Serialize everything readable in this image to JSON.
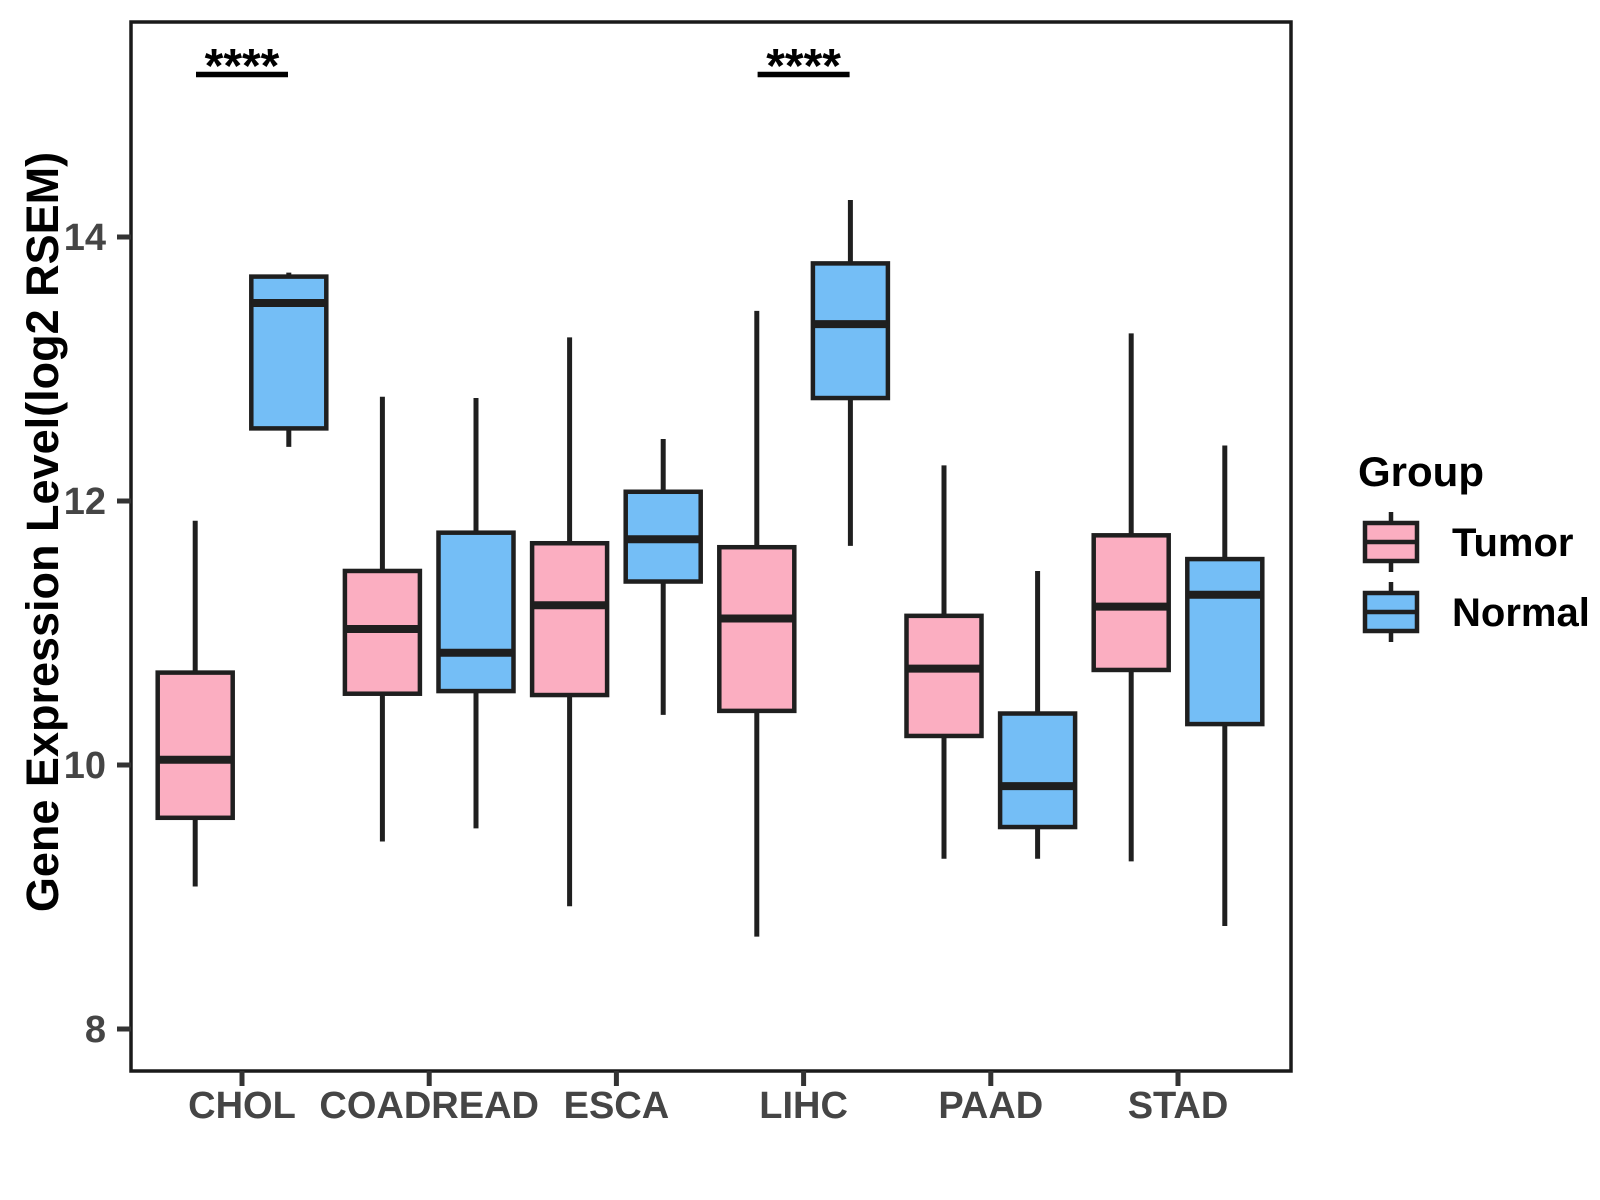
{
  "chart_data": {
    "type": "boxplot",
    "title": "",
    "xlabel": "",
    "ylabel": "Gene Expression Level(log2 RSEM)",
    "categories": [
      "CHOL",
      "COADREAD",
      "ESCA",
      "LIHC",
      "PAAD",
      "STAD"
    ],
    "y_axis": {
      "ticks": [
        14,
        12,
        10,
        8
      ],
      "ylim": [
        7.7,
        15.6
      ],
      "grid": false
    },
    "legend": {
      "title": "Group",
      "position": "right"
    },
    "groups": [
      {
        "name": "Tumor",
        "color": "#FBAEC1",
        "boxes": [
          {
            "category": "CHOL",
            "low": 9.08,
            "q1": 9.6,
            "median": 10.04,
            "q3": 10.7,
            "high": 11.85
          },
          {
            "category": "COADREAD",
            "low": 9.42,
            "q1": 10.54,
            "median": 11.03,
            "q3": 11.47,
            "high": 12.79
          },
          {
            "category": "ESCA",
            "low": 8.93,
            "q1": 10.53,
            "median": 11.21,
            "q3": 11.68,
            "high": 13.24
          },
          {
            "category": "LIHC",
            "low": 8.7,
            "q1": 10.41,
            "median": 11.11,
            "q3": 11.65,
            "high": 13.44
          },
          {
            "category": "PAAD",
            "low": 9.29,
            "q1": 10.22,
            "median": 10.73,
            "q3": 11.13,
            "high": 12.27
          },
          {
            "category": "STAD",
            "low": 9.27,
            "q1": 10.72,
            "median": 11.2,
            "q3": 11.74,
            "high": 13.27
          }
        ]
      },
      {
        "name": "Normal",
        "color": "#74BEF6",
        "boxes": [
          {
            "category": "CHOL",
            "low": 12.41,
            "q1": 12.55,
            "median": 13.5,
            "q3": 13.7,
            "high": 13.73
          },
          {
            "category": "COADREAD",
            "low": 9.52,
            "q1": 10.56,
            "median": 10.85,
            "q3": 11.76,
            "high": 12.78
          },
          {
            "category": "ESCA",
            "low": 10.38,
            "q1": 11.39,
            "median": 11.71,
            "q3": 12.07,
            "high": 12.47
          },
          {
            "category": "LIHC",
            "low": 11.66,
            "q1": 12.78,
            "median": 13.34,
            "q3": 13.8,
            "high": 14.28
          },
          {
            "category": "PAAD",
            "low": 9.29,
            "q1": 9.53,
            "median": 9.84,
            "q3": 10.39,
            "high": 11.47
          },
          {
            "category": "STAD",
            "low": 8.78,
            "q1": 10.31,
            "median": 11.29,
            "q3": 11.56,
            "high": 12.42
          }
        ]
      }
    ],
    "significance": [
      {
        "category": "CHOL",
        "label": "****"
      },
      {
        "category": "LIHC",
        "label": "****"
      }
    ],
    "colors": {
      "frame": "#1A1A1A",
      "axis": "#333333",
      "box_stroke": "#1F1F1F",
      "tick_text": "#454545",
      "tumor_fill": "#FBAEC1",
      "normal_fill": "#74BEF6",
      "background": "#FFFFFF"
    }
  }
}
